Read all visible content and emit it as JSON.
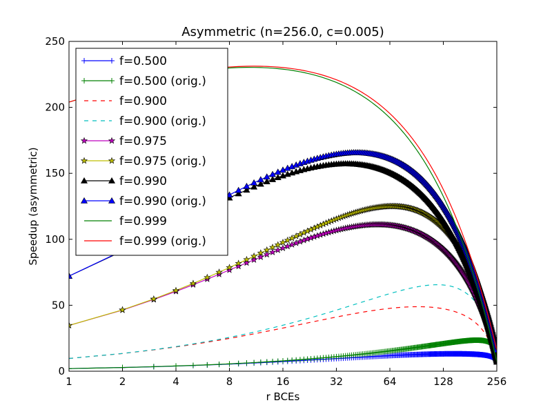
{
  "chart_data": {
    "type": "line",
    "title": "Asymmetric (n=256.0, c=0.005)",
    "xlabel": "r BCEs",
    "ylabel": "Speedup (asymmetric)",
    "xscale": "log2",
    "xlim": [
      1,
      256
    ],
    "ylim": [
      0,
      250
    ],
    "xticks": [
      1,
      2,
      4,
      8,
      16,
      32,
      64,
      128,
      256
    ],
    "xtick_labels": [
      "1",
      "2",
      "4",
      "8",
      "16",
      "32",
      "64",
      "128",
      "256"
    ],
    "yticks": [
      0,
      50,
      100,
      150,
      200,
      250
    ],
    "ytick_labels": [
      "0",
      "50",
      "100",
      "150",
      "200",
      "250"
    ],
    "grid": false,
    "legend_position": "top-left",
    "n": 256,
    "c": 0.005,
    "series": [
      {
        "name": "f=0.500",
        "f": 0.5,
        "orig": false,
        "color": "#0000ff",
        "style": "solid",
        "marker": "plus"
      },
      {
        "name": "f=0.500 (orig.)",
        "f": 0.5,
        "orig": true,
        "color": "#008000",
        "style": "solid",
        "marker": "plus"
      },
      {
        "name": "f=0.900",
        "f": 0.9,
        "orig": false,
        "color": "#ff0000",
        "style": "dashed",
        "marker": "none"
      },
      {
        "name": "f=0.900 (orig.)",
        "f": 0.9,
        "orig": true,
        "color": "#00bfbf",
        "style": "dashed",
        "marker": "none"
      },
      {
        "name": "f=0.975",
        "f": 0.975,
        "orig": false,
        "color": "#bf00bf",
        "style": "solid",
        "marker": "star"
      },
      {
        "name": "f=0.975 (orig.)",
        "f": 0.975,
        "orig": true,
        "color": "#bfbf00",
        "style": "solid",
        "marker": "star"
      },
      {
        "name": "f=0.990",
        "f": 0.99,
        "orig": false,
        "color": "#000000",
        "style": "solid",
        "marker": "triangle"
      },
      {
        "name": "f=0.990 (orig.)",
        "f": 0.99,
        "orig": true,
        "color": "#0000ff",
        "style": "solid",
        "marker": "triangle"
      },
      {
        "name": "f=0.999",
        "f": 0.999,
        "orig": false,
        "color": "#008000",
        "style": "solid",
        "marker": "none"
      },
      {
        "name": "f=0.999 (orig.)",
        "f": 0.999,
        "orig": true,
        "color": "#ff0000",
        "style": "solid",
        "marker": "none"
      }
    ]
  }
}
